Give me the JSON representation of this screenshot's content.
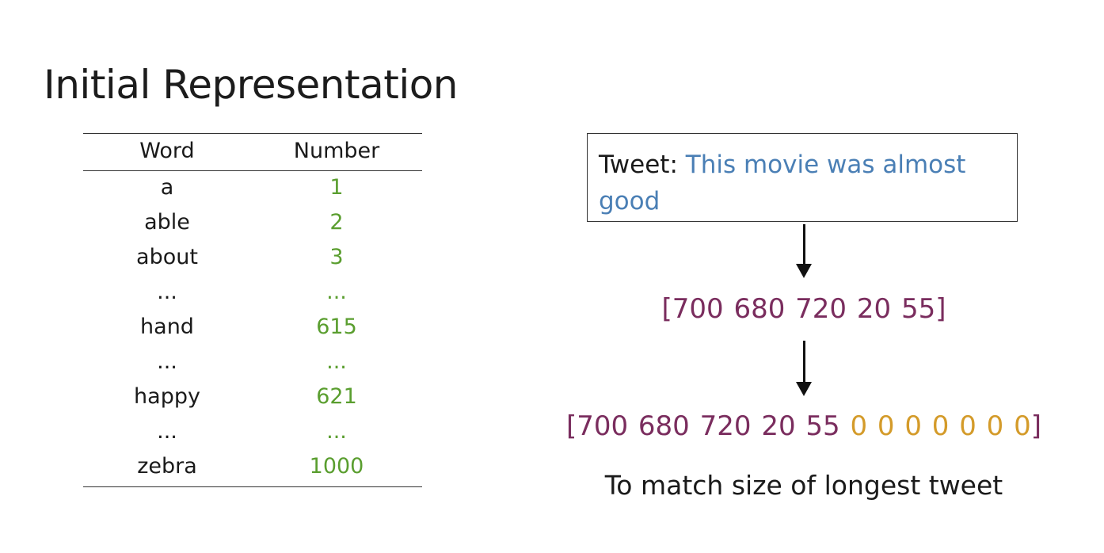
{
  "title": "Initial Representation",
  "table": {
    "headers": [
      "Word",
      "Number"
    ],
    "rows": [
      {
        "word": "a",
        "number": "1"
      },
      {
        "word": "able",
        "number": "2"
      },
      {
        "word": "about",
        "number": "3"
      },
      {
        "word": "...",
        "number": "..."
      },
      {
        "word": "hand",
        "number": "615"
      },
      {
        "word": "...",
        "number": "..."
      },
      {
        "word": "happy",
        "number": "621"
      },
      {
        "word": "...",
        "number": "..."
      },
      {
        "word": "zebra",
        "number": "1000"
      }
    ]
  },
  "tweet": {
    "label": "Tweet:",
    "text": "This movie was almost good"
  },
  "sequence": "[700 680 720 20 55]",
  "padded_sequence": {
    "values": "[700 680 720 20 55",
    "padding": "0 0 0 0 0 0 0",
    "close": "]"
  },
  "caption": "To match size of longest tweet",
  "colors": {
    "word_number": "#5a9e2f",
    "tweet_text": "#4a7fb5",
    "sequence": "#7a2d5e",
    "padding": "#d49b2a"
  }
}
